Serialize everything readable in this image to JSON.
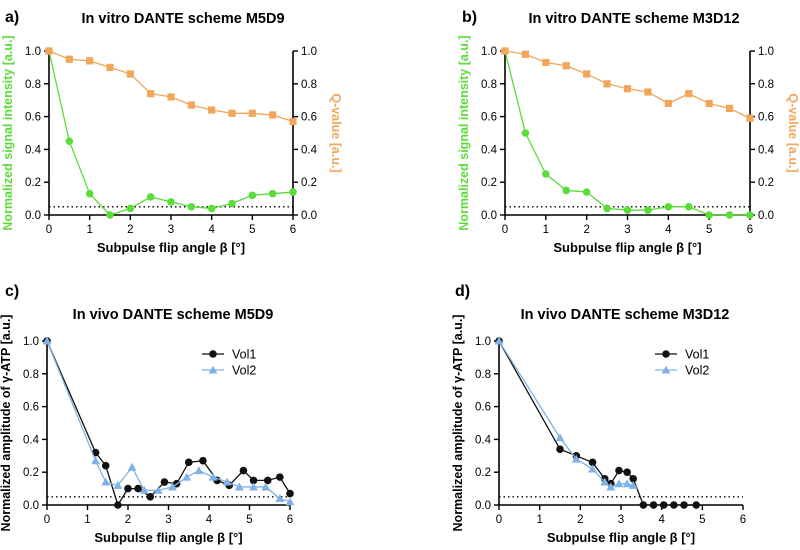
{
  "figure": {
    "panels": [
      "a)",
      "b)",
      "c)",
      "d)"
    ]
  },
  "colors": {
    "green": "#5BDC3A",
    "orange": "#F0A75C",
    "black": "#111111",
    "blue": "#7FB2E6",
    "axis": "#000000",
    "threshold": "#000000"
  },
  "chart_data": [
    {
      "panel": "a)",
      "type": "line",
      "title": "In vitro DANTE scheme M5D9",
      "xlabel": "Subpulse flip angle β [°]",
      "ylabel": "Normalized signal intensity [a.u.]",
      "y2label": "Q-value [a.u.]",
      "xlim": [
        0,
        6
      ],
      "ylim": [
        0,
        1.0
      ],
      "y2lim": [
        0,
        1.0
      ],
      "xticks": [
        "0",
        "1",
        "2",
        "3",
        "4",
        "5",
        "6"
      ],
      "yticks": [
        "0.0",
        "0.2",
        "0.4",
        "0.6",
        "0.8",
        "1.0"
      ],
      "y2ticks": [
        "0.0",
        "0.2",
        "0.4",
        "0.6",
        "0.8",
        "1.0"
      ],
      "threshold": 0.05,
      "series": [
        {
          "axis": "left",
          "marker": "circle",
          "color": "#5BDC3A",
          "x": [
            0,
            0.5,
            1,
            1.5,
            2,
            2.5,
            3,
            3.5,
            4,
            4.5,
            5,
            5.5,
            6
          ],
          "y": [
            1.0,
            0.45,
            0.13,
            0.0,
            0.04,
            0.11,
            0.08,
            0.05,
            0.04,
            0.07,
            0.12,
            0.13,
            0.14
          ]
        },
        {
          "axis": "right",
          "marker": "square",
          "color": "#F0A75C",
          "x": [
            0,
            0.5,
            1,
            1.5,
            2,
            2.5,
            3,
            3.5,
            4,
            4.5,
            5,
            5.5,
            6
          ],
          "y": [
            1.0,
            0.95,
            0.94,
            0.9,
            0.86,
            0.74,
            0.72,
            0.67,
            0.64,
            0.62,
            0.62,
            0.61,
            0.57
          ]
        }
      ]
    },
    {
      "panel": "b)",
      "type": "line",
      "title": "In vitro DANTE scheme M3D12",
      "xlabel": "Subpulse flip angle β [°]",
      "ylabel": "Normalized signal intensity [a.u.]",
      "y2label": "Q-value [a.u.]",
      "xlim": [
        0,
        6
      ],
      "ylim": [
        0,
        1.0
      ],
      "y2lim": [
        0,
        1.0
      ],
      "xticks": [
        "0",
        "1",
        "2",
        "3",
        "4",
        "5",
        "6"
      ],
      "yticks": [
        "0.0",
        "0.2",
        "0.4",
        "0.6",
        "0.8",
        "1.0"
      ],
      "y2ticks": [
        "0.0",
        "0.2",
        "0.4",
        "0.6",
        "0.8",
        "1.0"
      ],
      "threshold": 0.05,
      "series": [
        {
          "axis": "left",
          "marker": "circle",
          "color": "#5BDC3A",
          "x": [
            0,
            0.5,
            1,
            1.5,
            2,
            2.5,
            3,
            3.5,
            4,
            4.5,
            5,
            5.5,
            6
          ],
          "y": [
            1.0,
            0.5,
            0.25,
            0.15,
            0.14,
            0.04,
            0.03,
            0.03,
            0.05,
            0.05,
            0.0,
            0.0,
            0.0
          ]
        },
        {
          "axis": "right",
          "marker": "square",
          "color": "#F0A75C",
          "x": [
            0,
            0.5,
            1,
            1.5,
            2,
            2.5,
            3,
            3.5,
            4,
            4.5,
            5,
            5.5,
            6
          ],
          "y": [
            1.0,
            0.98,
            0.93,
            0.91,
            0.86,
            0.8,
            0.77,
            0.75,
            0.68,
            0.74,
            0.68,
            0.65,
            0.59
          ]
        }
      ]
    },
    {
      "panel": "c)",
      "type": "line",
      "title": "In vivo DANTE scheme M5D9",
      "xlabel": "Subpulse flip angle β [°]",
      "ylabel": "Normalized amplitude of γ-ATP [a.u.]",
      "xlim": [
        0,
        6
      ],
      "ylim": [
        0,
        1.0
      ],
      "xticks": [
        "0",
        "1",
        "2",
        "3",
        "4",
        "5",
        "6"
      ],
      "yticks": [
        "0.0",
        "0.2",
        "0.4",
        "0.6",
        "0.8",
        "1.0"
      ],
      "threshold": 0.05,
      "legend": "top-right",
      "series": [
        {
          "name": "Vol1",
          "marker": "circle",
          "color": "#111111",
          "x": [
            0,
            1.2,
            1.45,
            1.75,
            2.0,
            2.25,
            2.55,
            2.9,
            3.2,
            3.5,
            3.85,
            4.2,
            4.5,
            4.85,
            5.1,
            5.45,
            5.75,
            6.0
          ],
          "y": [
            1.0,
            0.32,
            0.24,
            0.0,
            0.1,
            0.1,
            0.05,
            0.14,
            0.13,
            0.26,
            0.27,
            0.15,
            0.12,
            0.21,
            0.15,
            0.15,
            0.17,
            0.07
          ]
        },
        {
          "name": "Vol2",
          "marker": "triangle",
          "color": "#7FB2E6",
          "x": [
            0,
            1.2,
            1.45,
            1.75,
            2.1,
            2.4,
            2.75,
            3.1,
            3.45,
            3.75,
            4.1,
            4.45,
            4.75,
            5.1,
            5.4,
            5.75,
            6.0
          ],
          "y": [
            1.0,
            0.27,
            0.14,
            0.12,
            0.23,
            0.09,
            0.09,
            0.11,
            0.17,
            0.21,
            0.17,
            0.14,
            0.11,
            0.11,
            0.11,
            0.04,
            0.02
          ]
        }
      ]
    },
    {
      "panel": "d)",
      "type": "line",
      "title": "In vivo DANTE scheme M3D12",
      "xlabel": "Subpulse flip angle β [°]",
      "ylabel": "Normalized amplitude of γ-ATP [a.u.]",
      "xlim": [
        0,
        6
      ],
      "ylim": [
        0,
        1.0
      ],
      "xticks": [
        "0",
        "1",
        "2",
        "3",
        "4",
        "5",
        "6"
      ],
      "yticks": [
        "0.0",
        "0.2",
        "0.4",
        "0.6",
        "0.8",
        "1.0"
      ],
      "threshold": 0.05,
      "legend": "top-right",
      "series": [
        {
          "name": "Vol1",
          "marker": "circle",
          "color": "#111111",
          "x": [
            0,
            1.5,
            1.9,
            2.3,
            2.6,
            2.75,
            2.95,
            3.15,
            3.3,
            3.55,
            3.8,
            4.05,
            4.3,
            4.55,
            4.85
          ],
          "y": [
            1.0,
            0.34,
            0.3,
            0.26,
            0.16,
            0.13,
            0.21,
            0.2,
            0.16,
            0.0,
            0.0,
            0.0,
            0.0,
            0.0,
            0.0
          ]
        },
        {
          "name": "Vol2",
          "marker": "triangle",
          "color": "#7FB2E6",
          "x": [
            0,
            1.5,
            1.9,
            2.3,
            2.6,
            2.75,
            2.95,
            3.15,
            3.3
          ],
          "y": [
            1.0,
            0.41,
            0.28,
            0.22,
            0.14,
            0.11,
            0.13,
            0.13,
            0.12
          ]
        }
      ]
    }
  ]
}
